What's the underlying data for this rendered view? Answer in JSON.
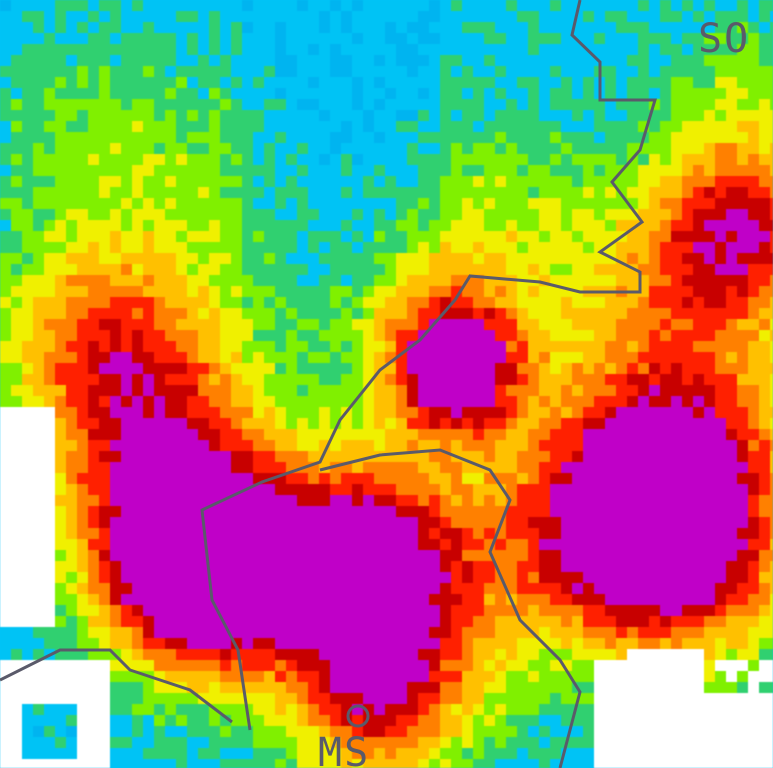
{
  "map": {
    "labels": {
      "top_right": "SO",
      "bottom": "MS"
    },
    "reflectivity_palette": [
      "#ffffff",
      "#1e78f0",
      "#00b4f0",
      "#00c3f5",
      "#30d070",
      "#80f000",
      "#f0f000",
      "#ffc000",
      "#ff8000",
      "#ff2000",
      "#c80000",
      "#c000c8"
    ],
    "border_color": "#5a5a6a",
    "city_marker": "circle-marker-icon"
  }
}
